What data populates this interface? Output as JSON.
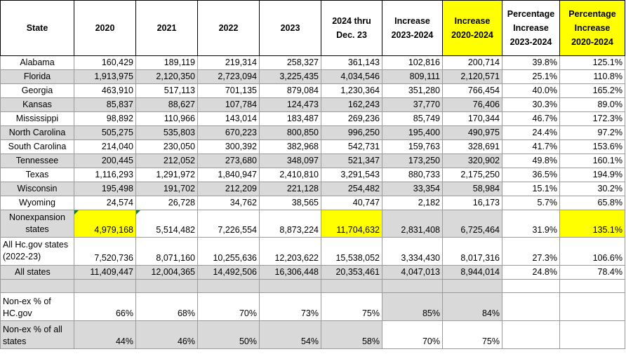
{
  "headers": [
    "State",
    "2020",
    "2021",
    "2022",
    "2023",
    "2024 thru Dec. 23",
    "Increase 2023-2024",
    "Increase 2020-2024",
    "Percentage Increase 2023-2024",
    "Percentage Increase 2020-2024"
  ],
  "highlight_color": "#ffff00",
  "shade_color": "#d9d9d9",
  "rows": [
    {
      "state": "Alabama",
      "values": [
        "160,429",
        "189,119",
        "219,314",
        "258,327",
        "361,143",
        "102,816",
        "200,714",
        "39.8%",
        "125.1%"
      ]
    },
    {
      "state": "Florida",
      "values": [
        "1,913,975",
        "2,120,350",
        "2,723,094",
        "3,225,435",
        "4,034,546",
        "809,111",
        "2,120,571",
        "25.1%",
        "110.8%"
      ]
    },
    {
      "state": "Georgia",
      "values": [
        "463,910",
        "517,113",
        "701,135",
        "879,084",
        "1,230,364",
        "351,280",
        "766,454",
        "40.0%",
        "165.2%"
      ]
    },
    {
      "state": "Kansas",
      "values": [
        "85,837",
        "88,627",
        "107,784",
        "124,473",
        "162,243",
        "37,770",
        "76,406",
        "30.3%",
        "89.0%"
      ]
    },
    {
      "state": "Mississippi",
      "values": [
        "98,892",
        "110,966",
        "143,014",
        "183,487",
        "269,236",
        "85,749",
        "170,344",
        "46.7%",
        "172.3%"
      ]
    },
    {
      "state": "North Carolina",
      "values": [
        "505,275",
        "535,803",
        "670,223",
        "800,850",
        "996,250",
        "195,400",
        "490,975",
        "24.4%",
        "97.2%"
      ]
    },
    {
      "state": "South Carolina",
      "values": [
        "214,040",
        "230,050",
        "300,392",
        "382,968",
        "542,731",
        "159,763",
        "328,691",
        "41.7%",
        "153.6%"
      ]
    },
    {
      "state": "Tennessee",
      "values": [
        "200,445",
        "212,052",
        "273,680",
        "348,097",
        "521,347",
        "173,250",
        "320,902",
        "49.8%",
        "160.1%"
      ]
    },
    {
      "state": "Texas",
      "values": [
        "1,116,293",
        "1,291,972",
        "1,840,947",
        "2,410,810",
        "3,291,543",
        "880,733",
        "2,175,250",
        "36.5%",
        "194.9%"
      ]
    },
    {
      "state": "Wisconsin",
      "values": [
        "195,498",
        "191,702",
        "212,209",
        "221,128",
        "254,482",
        "33,354",
        "58,984",
        "15.1%",
        "30.2%"
      ]
    },
    {
      "state": "Wyoming",
      "values": [
        "24,574",
        "26,728",
        "34,762",
        "38,565",
        "40,747",
        "2,182",
        "16,173",
        "5.7%",
        "65.8%"
      ]
    }
  ],
  "nonexpansion": {
    "label": "Nonexpansion states",
    "values": [
      "4,979,168",
      "5,514,482",
      "7,226,554",
      "8,873,224",
      "11,704,632",
      "2,831,408",
      "6,725,464",
      "31.9%",
      "135.1%"
    ]
  },
  "all_hc": {
    "label": "All Hc.gov states (2022-23)",
    "values": [
      "7,520,736",
      "8,071,160",
      "10,255,636",
      "12,203,622",
      "15,538,052",
      "3,334,430",
      "8,017,316",
      "27.3%",
      "106.6%"
    ]
  },
  "all_states": {
    "label": "All states",
    "values": [
      "11,409,447",
      "12,004,365",
      "14,492,506",
      "16,306,448",
      "20,353,461",
      "4,047,013",
      "8,944,014",
      "24.8%",
      "78.4%"
    ]
  },
  "nonex_hc": {
    "label": "Non-ex % of HC.gov",
    "values": [
      "66%",
      "68%",
      "70%",
      "73%",
      "75%",
      "85%",
      "84%",
      "",
      ""
    ]
  },
  "nonex_all": {
    "label": "Non-ex % of all states",
    "values": [
      "44%",
      "46%",
      "50%",
      "54%",
      "58%",
      "70%",
      "75%",
      "",
      ""
    ]
  }
}
